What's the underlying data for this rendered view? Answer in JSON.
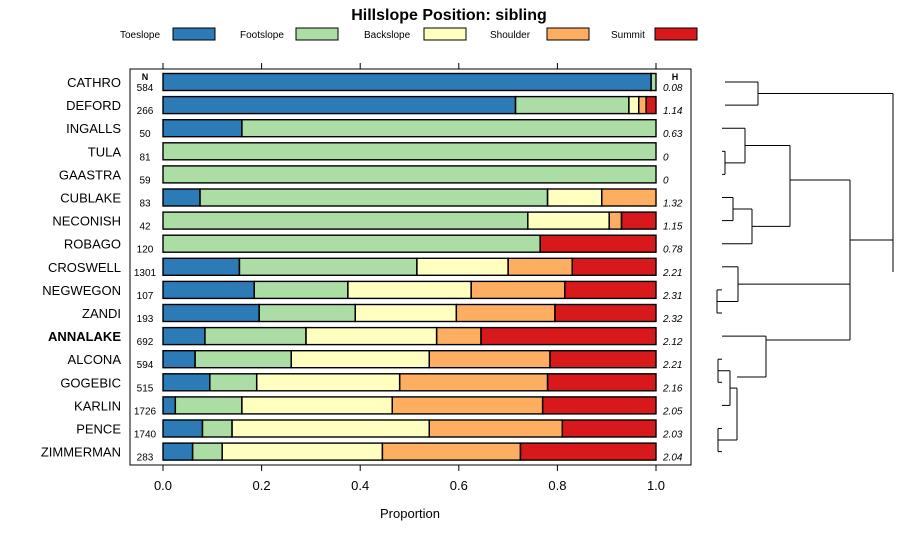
{
  "chart_data": {
    "type": "bar",
    "orientation": "horizontal",
    "stacked": true,
    "title": "Hillslope Position: sibling",
    "xlabel": "Proportion",
    "ylabel": "",
    "xlim": [
      0,
      1
    ],
    "xticks": [
      "0.0",
      "0.2",
      "0.4",
      "0.6",
      "0.8",
      "1.0"
    ],
    "n_header": "N",
    "h_header": "H",
    "legend": [
      {
        "name": "Toeslope",
        "color": "#2c7bb6"
      },
      {
        "name": "Footslope",
        "color": "#abdda4"
      },
      {
        "name": "Backslope",
        "color": "#ffffbf"
      },
      {
        "name": "Shoulder",
        "color": "#fdae61"
      },
      {
        "name": "Summit",
        "color": "#d7191c"
      }
    ],
    "rows": [
      {
        "name": "CATHRO",
        "n": "584",
        "h": "0.08",
        "values": [
          0.99,
          0.01,
          0,
          0,
          0
        ],
        "bold": false
      },
      {
        "name": "DEFORD",
        "n": "266",
        "h": "1.14",
        "values": [
          0.715,
          0.23,
          0.02,
          0.015,
          0.02
        ],
        "bold": false
      },
      {
        "name": "INGALLS",
        "n": "50",
        "h": "0.63",
        "values": [
          0.16,
          0.84,
          0,
          0,
          0
        ],
        "bold": false
      },
      {
        "name": "TULA",
        "n": "81",
        "h": "0",
        "values": [
          0,
          1,
          0,
          0,
          0
        ],
        "bold": false
      },
      {
        "name": "GAASTRA",
        "n": "59",
        "h": "0",
        "values": [
          0,
          1,
          0,
          0,
          0
        ],
        "bold": false
      },
      {
        "name": "CUBLAKE",
        "n": "83",
        "h": "1.32",
        "values": [
          0.075,
          0.705,
          0.11,
          0.11,
          0
        ],
        "bold": false
      },
      {
        "name": "NECONISH",
        "n": "42",
        "h": "1.15",
        "values": [
          0,
          0.74,
          0.165,
          0.025,
          0.07
        ],
        "bold": false
      },
      {
        "name": "ROBAGO",
        "n": "120",
        "h": "0.78",
        "values": [
          0,
          0.765,
          0,
          0,
          0.235
        ],
        "bold": false
      },
      {
        "name": "CROSWELL",
        "n": "1301",
        "h": "2.21",
        "values": [
          0.155,
          0.36,
          0.185,
          0.13,
          0.17
        ],
        "bold": false
      },
      {
        "name": "NEGWEGON",
        "n": "107",
        "h": "2.31",
        "values": [
          0.185,
          0.19,
          0.25,
          0.19,
          0.185
        ],
        "bold": false
      },
      {
        "name": "ZANDI",
        "n": "193",
        "h": "2.32",
        "values": [
          0.195,
          0.195,
          0.205,
          0.2,
          0.205
        ],
        "bold": false
      },
      {
        "name": "ANNALAKE",
        "n": "692",
        "h": "2.12",
        "values": [
          0.085,
          0.205,
          0.265,
          0.09,
          0.355
        ],
        "bold": true
      },
      {
        "name": "ALCONA",
        "n": "594",
        "h": "2.21",
        "values": [
          0.065,
          0.195,
          0.28,
          0.245,
          0.215
        ],
        "bold": false
      },
      {
        "name": "GOGEBIC",
        "n": "515",
        "h": "2.16",
        "values": [
          0.095,
          0.095,
          0.29,
          0.3,
          0.22
        ],
        "bold": false
      },
      {
        "name": "KARLIN",
        "n": "1726",
        "h": "2.05",
        "values": [
          0.025,
          0.135,
          0.305,
          0.305,
          0.23
        ],
        "bold": false
      },
      {
        "name": "PENCE",
        "n": "1740",
        "h": "2.03",
        "values": [
          0.08,
          0.06,
          0.4,
          0.27,
          0.19
        ],
        "bold": false
      },
      {
        "name": "ZIMMERMAN",
        "n": "283",
        "h": "2.04",
        "values": [
          0.06,
          0.06,
          0.325,
          0.28,
          0.275
        ],
        "bold": false
      }
    ],
    "dendrogram": [
      {
        "rows": [
          0,
          1
        ],
        "height": 0.07
      },
      {
        "rows": [
          3,
          4
        ],
        "height": 0.01
      },
      {
        "rows": [
          2,
          1
        ],
        "height": 0.04,
        "note": "INGALLS + (TULA,GAASTRA)"
      }
    ]
  }
}
